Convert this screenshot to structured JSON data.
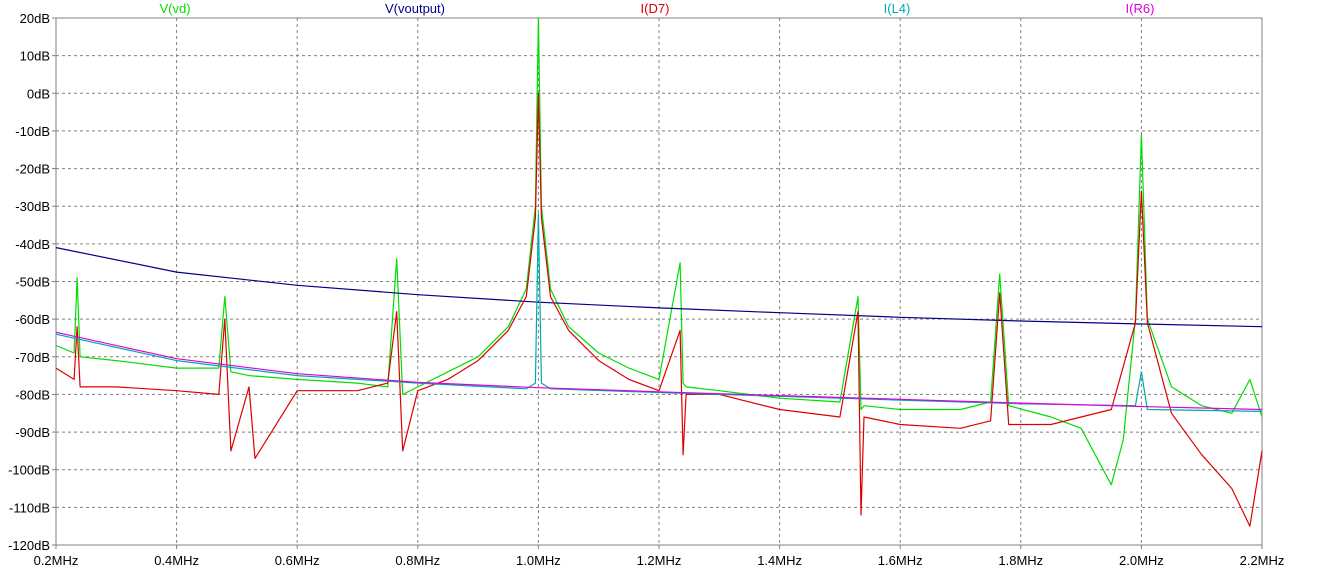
{
  "chart_data": {
    "type": "line",
    "title": "",
    "xlabel": "",
    "ylabel": "",
    "xlim": [
      0.2,
      2.2
    ],
    "ylim": [
      -120,
      20
    ],
    "x_unit": "MHz",
    "y_unit": "dB",
    "x_ticks": [
      "0.2MHz",
      "0.4MHz",
      "0.6MHz",
      "0.8MHz",
      "1.0MHz",
      "1.2MHz",
      "1.4MHz",
      "1.6MHz",
      "1.8MHz",
      "2.0MHz",
      "2.2MHz"
    ],
    "y_ticks": [
      "20dB",
      "10dB",
      "0dB",
      "-10dB",
      "-20dB",
      "-30dB",
      "-40dB",
      "-50dB",
      "-60dB",
      "-70dB",
      "-80dB",
      "-90dB",
      "-100dB",
      "-110dB",
      "-120dB"
    ],
    "grid": true,
    "legend_position": "top",
    "series": [
      {
        "name": "V(vd)",
        "color": "#00dd00",
        "x": [
          0.2,
          0.23,
          0.235,
          0.24,
          0.3,
          0.4,
          0.47,
          0.48,
          0.49,
          0.52,
          0.6,
          0.7,
          0.75,
          0.765,
          0.775,
          0.8,
          0.85,
          0.9,
          0.95,
          0.98,
          0.995,
          1.0,
          1.005,
          1.02,
          1.05,
          1.1,
          1.15,
          1.2,
          1.235,
          1.24,
          1.245,
          1.3,
          1.4,
          1.5,
          1.53,
          1.535,
          1.54,
          1.6,
          1.7,
          1.75,
          1.765,
          1.78,
          1.85,
          1.9,
          1.95,
          1.97,
          1.99,
          2.0,
          2.01,
          2.05,
          2.1,
          2.15,
          2.18,
          2.2
        ],
        "y": [
          -67,
          -69,
          -49,
          -70,
          -71,
          -73,
          -73,
          -54,
          -74,
          -75,
          -76,
          -77,
          -78,
          -44,
          -80,
          -78,
          -74,
          -70,
          -62,
          -52,
          -30,
          20,
          -30,
          -52,
          -62,
          -69,
          -73,
          -76,
          -45,
          -77,
          -78,
          -79,
          -81,
          -82,
          -54,
          -84,
          -83,
          -84,
          -84,
          -82,
          -48,
          -83,
          -86,
          -89,
          -104,
          -92,
          -60,
          -11,
          -60,
          -78,
          -83,
          -85,
          -76,
          -86
        ]
      },
      {
        "name": "V(voutput)",
        "color": "#00008b",
        "x": [
          0.2,
          0.4,
          0.6,
          0.8,
          1.0,
          1.2,
          1.4,
          1.6,
          1.8,
          2.0,
          2.2
        ],
        "y": [
          -41,
          -47.5,
          -51,
          -53.5,
          -55.5,
          -57,
          -58.3,
          -59.5,
          -60.5,
          -61.3,
          -62
        ]
      },
      {
        "name": "I(D7)",
        "color": "#dd0000",
        "x": [
          0.2,
          0.23,
          0.235,
          0.24,
          0.3,
          0.4,
          0.47,
          0.48,
          0.49,
          0.52,
          0.53,
          0.6,
          0.7,
          0.75,
          0.765,
          0.775,
          0.8,
          0.85,
          0.9,
          0.95,
          0.98,
          0.995,
          1.0,
          1.005,
          1.02,
          1.05,
          1.1,
          1.15,
          1.2,
          1.235,
          1.24,
          1.245,
          1.3,
          1.4,
          1.5,
          1.53,
          1.535,
          1.54,
          1.6,
          1.7,
          1.75,
          1.765,
          1.78,
          1.85,
          1.9,
          1.95,
          1.99,
          2.0,
          2.01,
          2.05,
          2.1,
          2.15,
          2.18,
          2.2
        ],
        "y": [
          -73,
          -76,
          -62,
          -78,
          -78,
          -79,
          -80,
          -60,
          -95,
          -78,
          -97,
          -79,
          -79,
          -77,
          -58,
          -95,
          -79,
          -76,
          -71,
          -63,
          -54,
          -33,
          0,
          -33,
          -54,
          -63,
          -71,
          -76,
          -79,
          -63,
          -96,
          -80,
          -80,
          -84,
          -86,
          -58,
          -112,
          -86,
          -88,
          -89,
          -87,
          -53,
          -88,
          -88,
          -86,
          -84,
          -61,
          -26,
          -61,
          -85,
          -96,
          -105,
          -115,
          -95
        ]
      },
      {
        "name": "I(L4)",
        "color": "#00aaaa",
        "x": [
          0.2,
          0.4,
          0.6,
          0.8,
          0.98,
          0.995,
          1.0,
          1.005,
          1.02,
          1.2,
          1.4,
          1.6,
          1.8,
          1.99,
          2.0,
          2.01,
          2.2
        ],
        "y": [
          -64,
          -71,
          -75,
          -77,
          -78.5,
          -77,
          -32,
          -77,
          -78.5,
          -79.5,
          -80.5,
          -81.5,
          -82.5,
          -83,
          -74,
          -84,
          -84.5
        ]
      },
      {
        "name": "I(R6)",
        "color": "#dd00dd",
        "x": [
          0.2,
          0.4,
          0.6,
          0.8,
          1.0,
          1.2,
          1.4,
          1.6,
          1.8,
          2.0,
          2.2
        ],
        "y": [
          -63.5,
          -70.5,
          -74.5,
          -76.8,
          -78.2,
          -79.3,
          -80.3,
          -81.3,
          -82.3,
          -83.2,
          -84
        ]
      }
    ]
  }
}
